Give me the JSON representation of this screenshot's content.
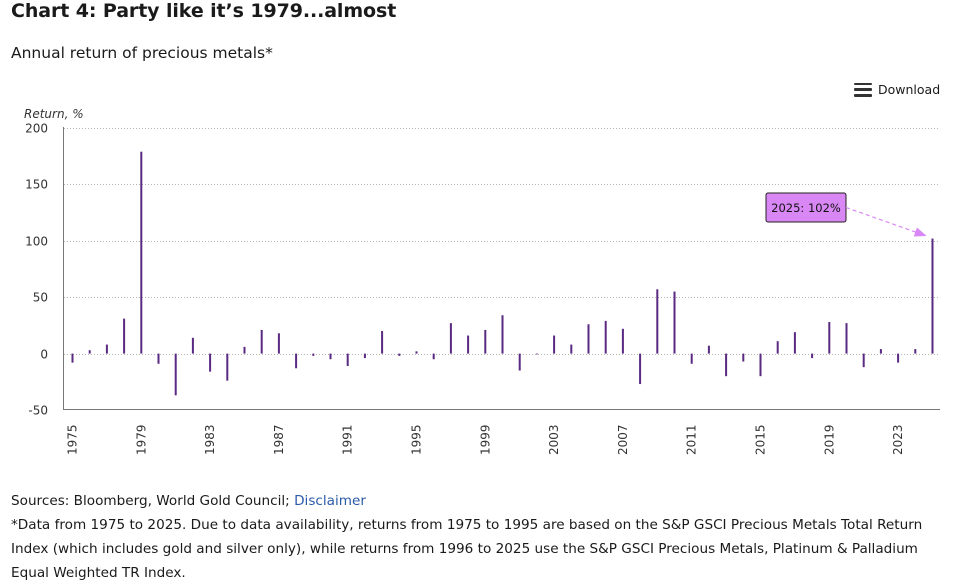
{
  "header": {
    "title": "Chart 4:  Party like it’s 1979...almost",
    "subtitle": "Annual return of precious metals*"
  },
  "toolbar": {
    "download_label": "Download",
    "download_icon": "menu-icon"
  },
  "chart_data": {
    "type": "bar",
    "ylabel": "Return, %",
    "ylim": [
      -50,
      200
    ],
    "yticks": [
      200,
      150,
      100,
      50,
      0,
      -50
    ],
    "grid": true,
    "bar_color": "#5a2a82",
    "callout_color": "#d987f4",
    "tick_labels": [
      "1975",
      "1979",
      "1983",
      "1987",
      "1991",
      "1995",
      "1999",
      "2003",
      "2007",
      "2011",
      "2015",
      "2019",
      "2023"
    ],
    "years": [
      1975,
      1976,
      1977,
      1978,
      1979,
      1980,
      1981,
      1982,
      1983,
      1984,
      1985,
      1986,
      1987,
      1988,
      1989,
      1990,
      1991,
      1992,
      1993,
      1994,
      1995,
      1996,
      1997,
      1998,
      1999,
      2000,
      2001,
      2002,
      2003,
      2004,
      2005,
      2006,
      2007,
      2008,
      2009,
      2010,
      2011,
      2012,
      2013,
      2014,
      2015,
      2016,
      2017,
      2018,
      2019,
      2020,
      2021,
      2022,
      2023,
      2024,
      2025
    ],
    "values": [
      -8,
      3,
      8,
      31,
      179,
      -9,
      -37,
      14,
      -16,
      -24,
      6,
      21,
      18,
      -13,
      -2,
      -5,
      -11,
      -4,
      20,
      -2,
      2,
      -5,
      27,
      16,
      21,
      34,
      -15,
      0,
      16,
      8,
      26,
      29,
      22,
      -27,
      57,
      55,
      -9,
      7,
      -20,
      -7,
      -20,
      11,
      19,
      -4,
      28,
      27,
      -12,
      4,
      -8,
      4,
      102
    ],
    "annotation": {
      "text": "2025: 102%",
      "year": 2025,
      "value": 102
    }
  },
  "footer": {
    "sources": "Sources: Bloomberg, World Gold Council; ",
    "disclaimer_link": "Disclaimer",
    "note": "*Data from 1975 to 2025. Due to data availability, returns from 1975 to 1995 are based on the S&P GSCI Precious Metals Total Return Index (which includes gold and silver only), while returns from 1996 to 2025 use the S&P GSCI Precious Metals, Platinum & Palladium Equal Weighted TR Index."
  }
}
